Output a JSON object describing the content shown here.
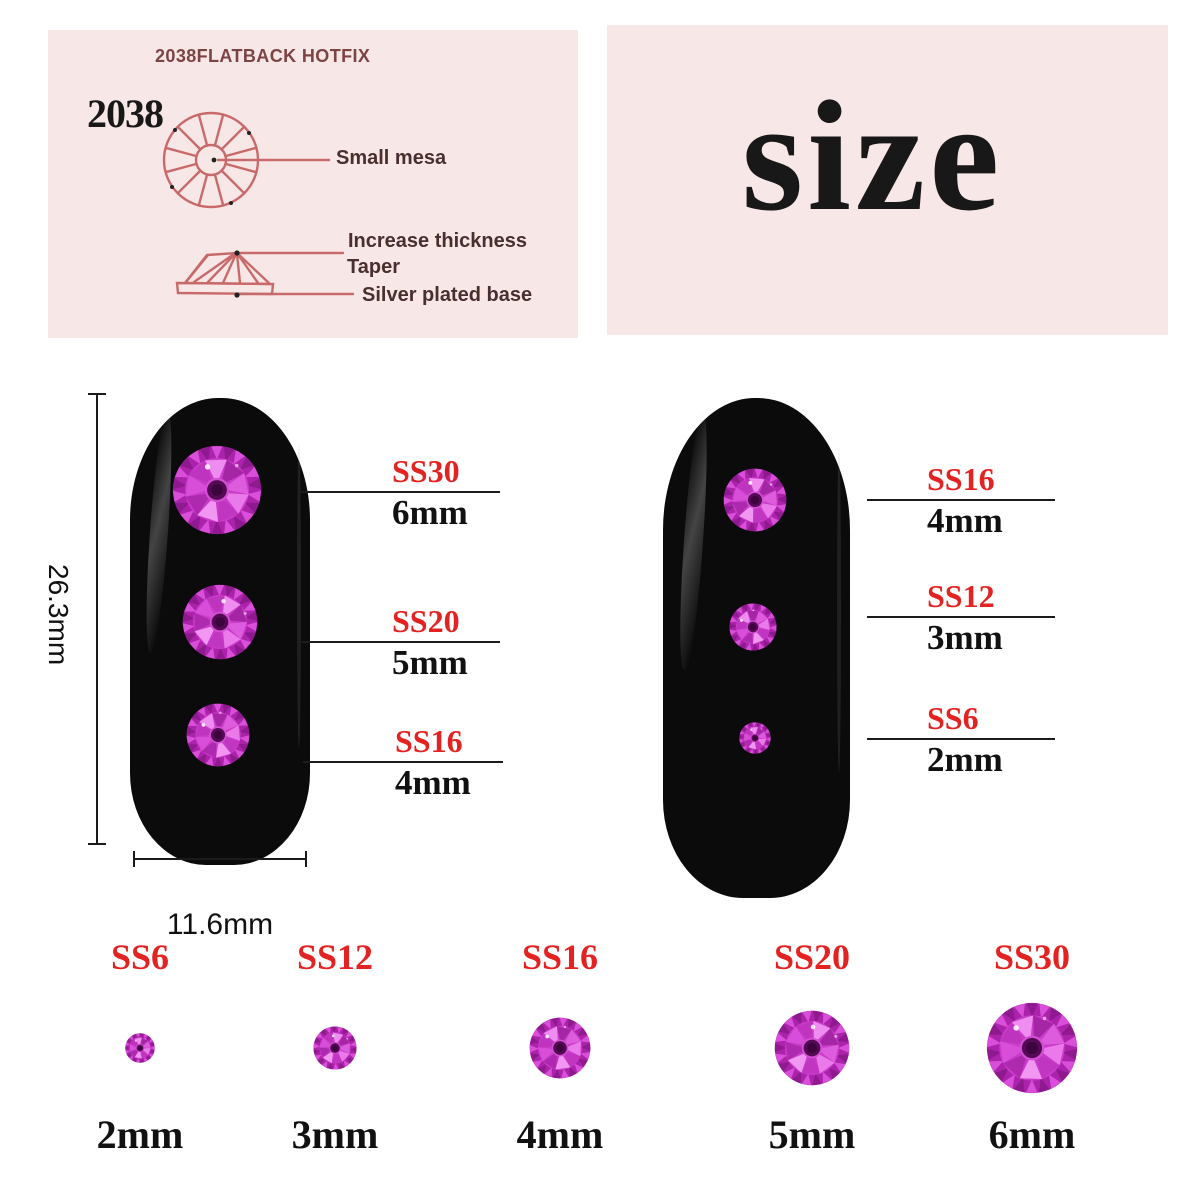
{
  "diagram_panel": {
    "title": "2038FLATBACK HOTFIX",
    "model": "2038",
    "labels": {
      "small_mesa": "Small mesa",
      "increase_thickness": "Increase thickness",
      "taper": "Taper",
      "silver_plated_base": "Silver plated base"
    }
  },
  "size_panel": {
    "heading": "size"
  },
  "dimensions": {
    "nail_height": "26.3mm",
    "nail_width": "11.6mm"
  },
  "nail_callouts": {
    "left": [
      {
        "ss": "SS30",
        "mm": "6mm"
      },
      {
        "ss": "SS20",
        "mm": "5mm"
      },
      {
        "ss": "SS16",
        "mm": "4mm"
      }
    ],
    "right": [
      {
        "ss": "SS16",
        "mm": "4mm"
      },
      {
        "ss": "SS12",
        "mm": "3mm"
      },
      {
        "ss": "SS6",
        "mm": "2mm"
      }
    ]
  },
  "size_chart": [
    {
      "ss": "SS6",
      "mm": "2mm"
    },
    {
      "ss": "SS12",
      "mm": "3mm"
    },
    {
      "ss": "SS16",
      "mm": "4mm"
    },
    {
      "ss": "SS20",
      "mm": "5mm"
    },
    {
      "ss": "SS30",
      "mm": "6mm"
    }
  ],
  "colors": {
    "panel_pink": "#f8e7e7",
    "accent_red": "#e32222",
    "diagram_line": "#c96a6a",
    "diagram_text": "#4a2f2f",
    "title_maroon": "#7d4444",
    "nail_black": "#0b0b0b",
    "gem_palette": {
      "rim": "#ab22ab",
      "serration_light": "#d94fd9",
      "serration_dark": "#8f198f",
      "mid": "#c93bc9",
      "facet_colors": [
        "#ea79ea",
        "#c136c1",
        "#f197f1",
        "#ad29ad",
        "#d84ed8",
        "#bf34bf",
        "#ef8cef",
        "#a526a5",
        "#dd5cdd"
      ],
      "inner_ring": "#d44fd4",
      "center": "#550a55",
      "center_dark": "#3d053d"
    }
  }
}
